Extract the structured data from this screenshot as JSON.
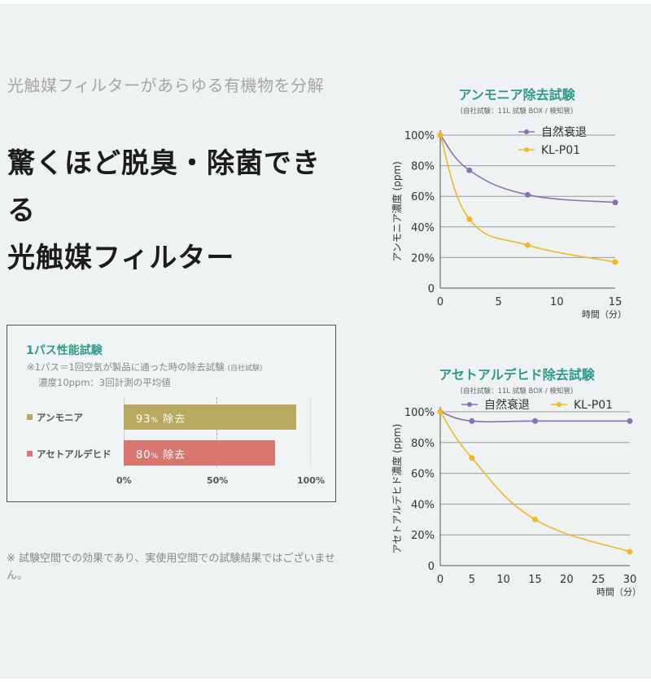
{
  "intro_text": "光触媒フィルターがあらゆる有機物を分解",
  "headline_lines": [
    "驚くほど脱臭・除菌でき",
    "る",
    "光触媒フィルター"
  ],
  "onepass": {
    "title": "1パス性能試験",
    "note1": "※1パス＝1回空気が製品に通った時の除去試験",
    "note1_small": "(自社試験)",
    "note2": "濃度10ppm：3回計測の平均値",
    "categories": [
      {
        "label": "アンモニア",
        "value": 93,
        "unit": "%",
        "text": "除去",
        "color": "#b7aa5f"
      },
      {
        "label": "アセトアルデヒド",
        "value": 80,
        "unit": "%",
        "text": "除去",
        "color": "#d9766f"
      }
    ],
    "ticks": [
      "0%",
      "50%",
      "100%"
    ]
  },
  "footnote": "※ 試験空間での効果であり、実使用空間での試験結果ではございません。",
  "chart_data": [
    {
      "type": "line",
      "title": "アンモニア除去試験",
      "subtitle": "(自社試験：11L 試験 BOX / 検知管)",
      "ylabel": "アンモニア濃度 (ppm)",
      "xlabel": "時間（分）",
      "xlim": [
        0,
        15
      ],
      "ylim": [
        0,
        100
      ],
      "xticks": [
        "0",
        "5",
        "10",
        "15"
      ],
      "yticks": [
        "0",
        "20%",
        "40%",
        "60%",
        "80%",
        "100%"
      ],
      "legend_position": "top-right",
      "series": [
        {
          "name": "自然衰退",
          "color": "#8a72b0",
          "x": [
            0,
            2.5,
            7.5,
            15
          ],
          "y": [
            100,
            77,
            61,
            56
          ]
        },
        {
          "name": "KL-P01",
          "color": "#f2b723",
          "x": [
            0,
            2.5,
            7.5,
            15
          ],
          "y": [
            100,
            45,
            28,
            17
          ]
        }
      ]
    },
    {
      "type": "line",
      "title": "アセトアルデヒド除去試験",
      "subtitle": "(自社試験：11L 試験 BOX / 検知管)",
      "ylabel": "アセトアルデヒド濃度 (ppm)",
      "xlabel": "時間（分）",
      "xlim": [
        0,
        30
      ],
      "ylim": [
        0,
        100
      ],
      "xticks": [
        "0",
        "5",
        "10",
        "15",
        "20",
        "25",
        "30"
      ],
      "yticks": [
        "0",
        "20%",
        "40%",
        "60%",
        "80%",
        "100%"
      ],
      "legend_position": "top",
      "series": [
        {
          "name": "自然衰退",
          "color": "#8a72b0",
          "x": [
            0,
            5,
            15,
            30
          ],
          "y": [
            100,
            94,
            94,
            94
          ]
        },
        {
          "name": "KL-P01",
          "color": "#f2b723",
          "x": [
            0,
            5,
            15,
            30
          ],
          "y": [
            100,
            70,
            30,
            9
          ]
        }
      ]
    }
  ]
}
